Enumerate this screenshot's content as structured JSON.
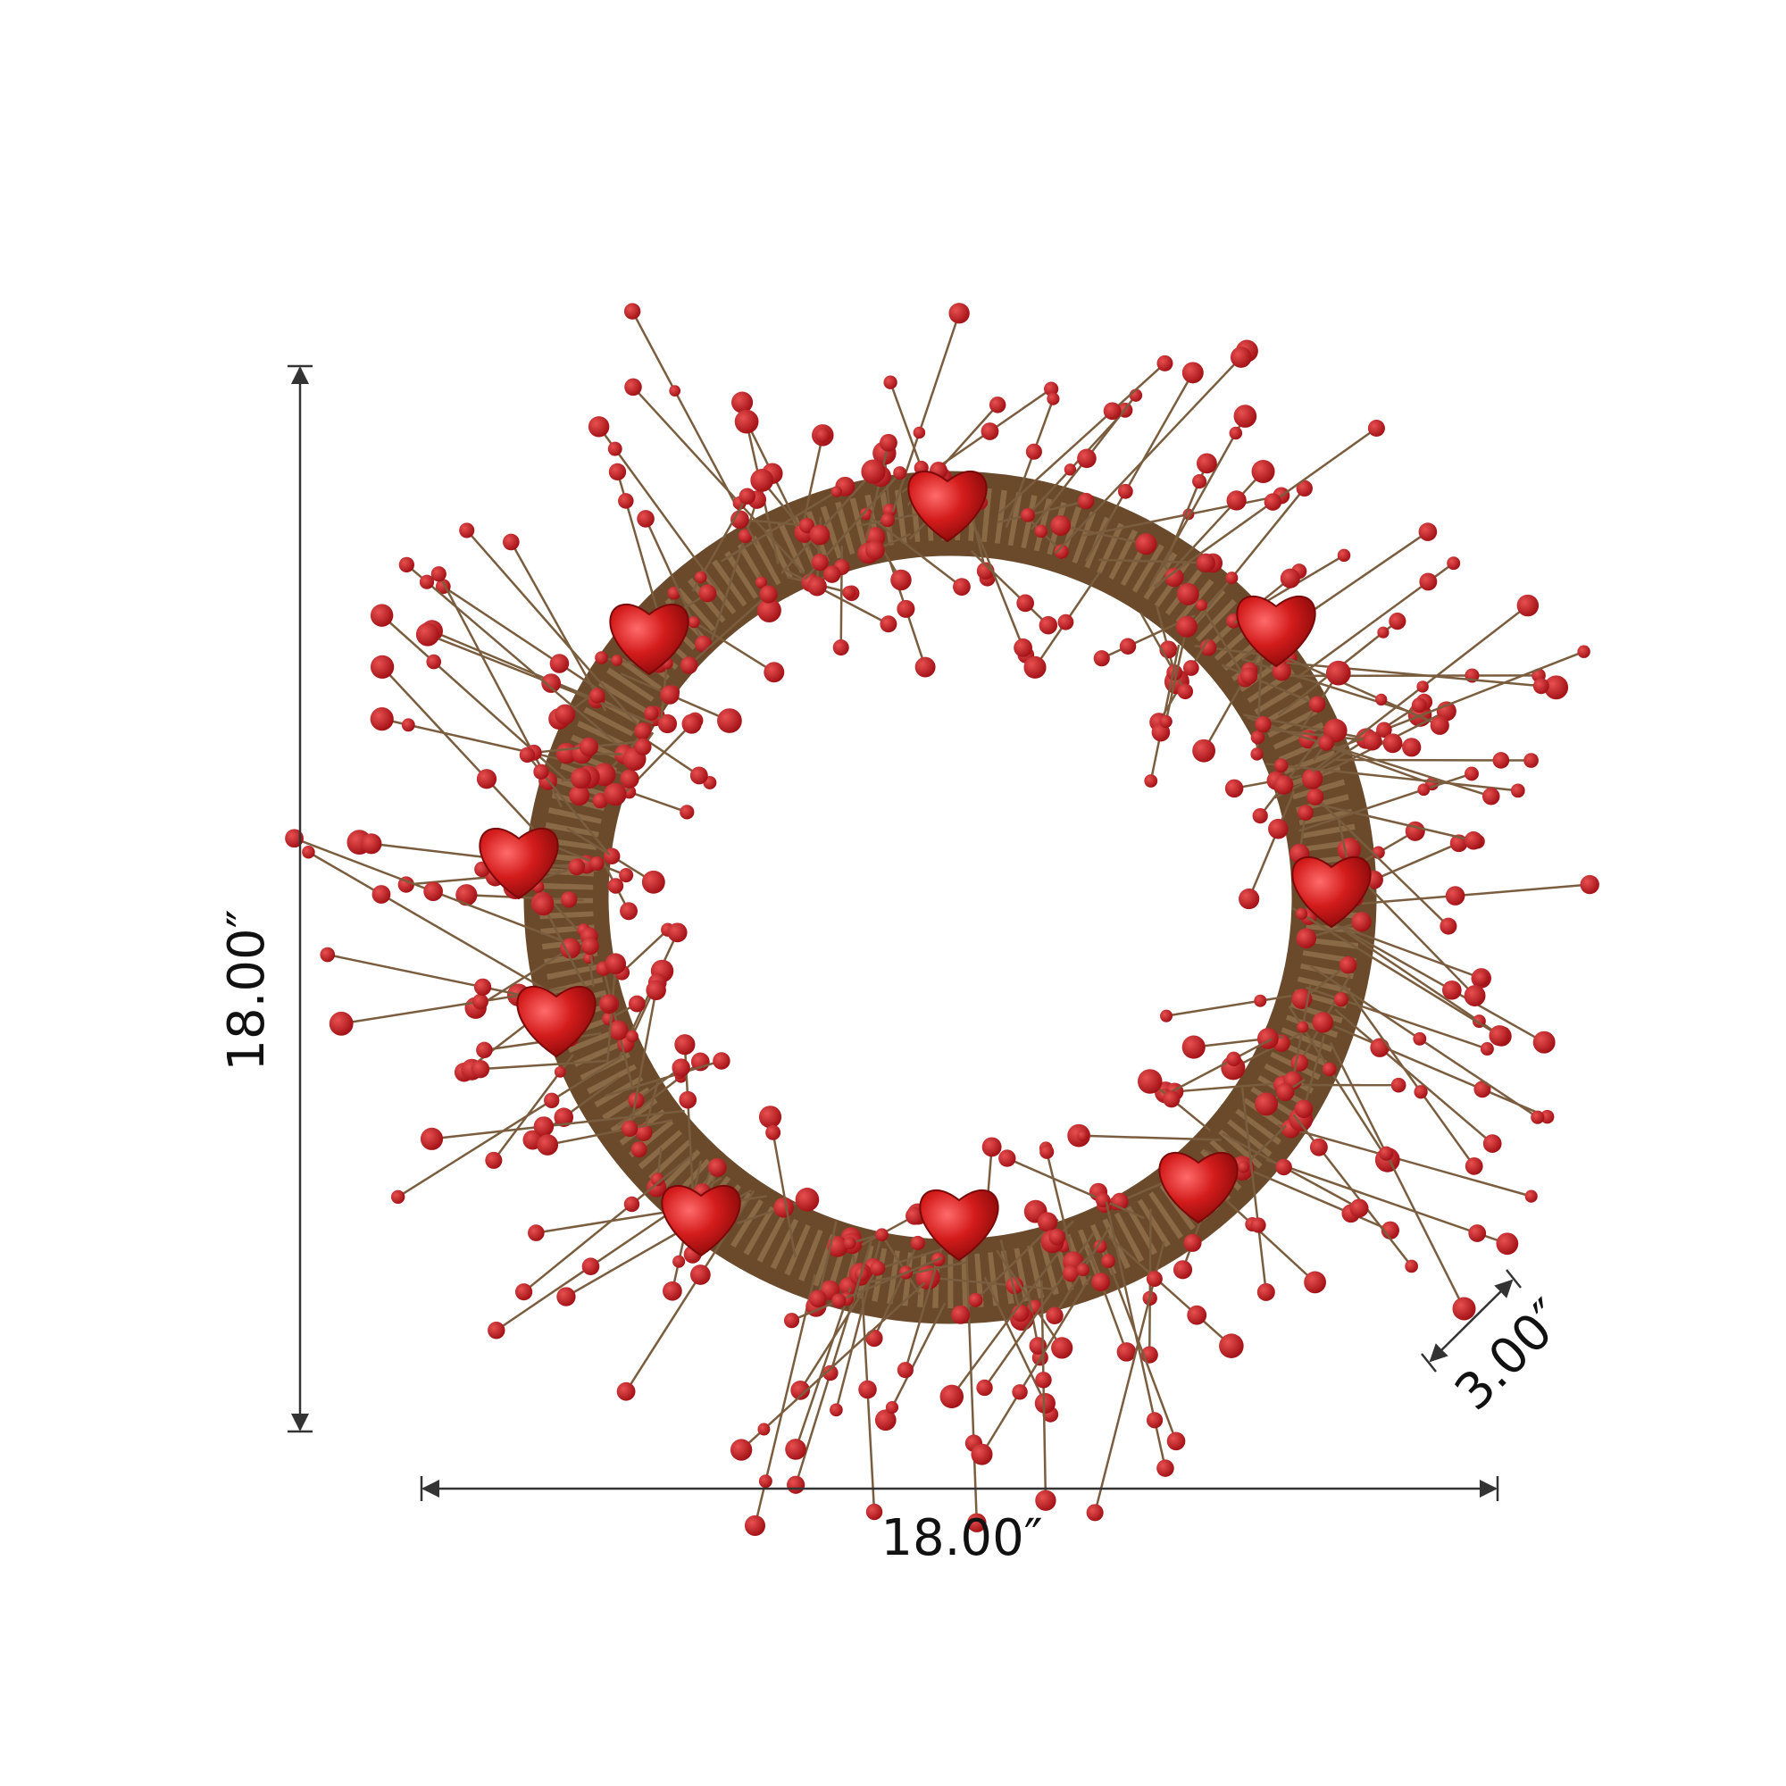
{
  "dimensions": {
    "height": "18.00″",
    "width": "18.00″",
    "depth": "3.00″"
  }
}
